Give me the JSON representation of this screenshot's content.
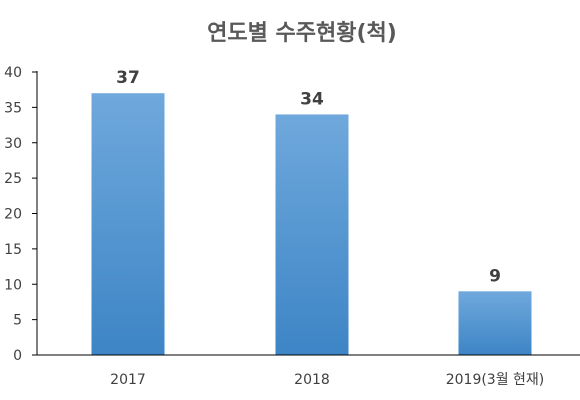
{
  "chart_data": {
    "type": "bar",
    "title": "연도별 수주현황(척)",
    "categories": [
      "2017",
      "2018",
      "2019(3월 현재)"
    ],
    "values": [
      37,
      34,
      9
    ],
    "xlabel": "",
    "ylabel": "",
    "ylim": [
      0,
      40
    ],
    "yticks": [
      0,
      5,
      10,
      15,
      20,
      25,
      30,
      35,
      40
    ],
    "data_labels": [
      "37",
      "34",
      "9"
    ],
    "grid": false,
    "legend": "none",
    "colors": {
      "bar_top": "#6fa8dc",
      "bar_bottom": "#3d85c6",
      "text": "#404040",
      "title": "#595959",
      "axis": "#000000"
    }
  }
}
